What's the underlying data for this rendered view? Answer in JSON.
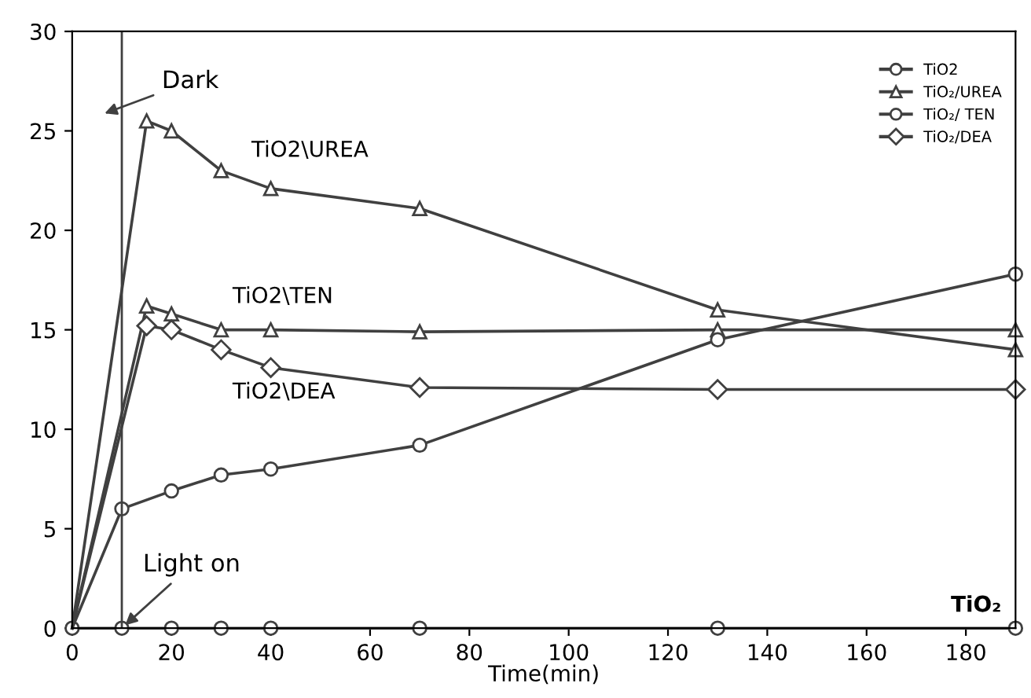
{
  "chart_data": {
    "type": "line",
    "xlabel": "Time(min)",
    "xlim": [
      0,
      190
    ],
    "ylim": [
      0,
      30
    ],
    "xticks": [
      0,
      20,
      40,
      60,
      80,
      100,
      120,
      140,
      160,
      180
    ],
    "yticks": [
      0,
      5,
      10,
      15,
      20,
      25,
      30
    ],
    "grid": false,
    "legend": "top right",
    "series": [
      {
        "name": "TiO2",
        "color": "#404040",
        "marker": "circle",
        "x": [
          0,
          10,
          20,
          30,
          40,
          70,
          130,
          190
        ],
        "values": [
          0,
          0,
          0,
          0,
          0,
          0,
          0,
          0
        ]
      },
      {
        "color": "#404040",
        "marker": "triangle",
        "x": [
          0,
          15,
          20,
          30,
          40,
          70,
          130,
          190
        ],
        "values": [
          0,
          25.5,
          25,
          23,
          22.1,
          21.1,
          16,
          14
        ]
      },
      {
        "name": "TiO₂/UREA",
        "color": "#404040",
        "marker": "triangle",
        "x": [
          0,
          15,
          20,
          30,
          40,
          70,
          130,
          190
        ],
        "values": [
          0,
          16.2,
          15.8,
          15,
          15,
          14.9,
          15,
          15
        ]
      },
      {
        "name": "TiO₂/ TEN",
        "color": "#404040",
        "marker": "circle",
        "x": [
          0,
          10,
          20,
          30,
          40,
          70,
          130,
          190
        ],
        "values": [
          0,
          6,
          6.9,
          7.7,
          8,
          9.2,
          14.5,
          17.8
        ]
      },
      {
        "name": "TiO₂/DEA",
        "color": "#404040",
        "marker": "diamond",
        "x": [
          0,
          15,
          20,
          30,
          40,
          70,
          130,
          190
        ],
        "values": [
          0,
          15.2,
          15,
          14,
          13.1,
          12.1,
          12,
          12
        ]
      }
    ],
    "ref_lines": [
      {
        "axis": "x",
        "value": 10,
        "color": "#404040",
        "line_style": "solid"
      }
    ],
    "annotations": [
      "Dark",
      {
        "text": "Light on",
        "x": 10,
        "y": 0
      },
      "TiO2\\UREA",
      "TiO2\\TEN",
      "TiO2\\DEA",
      "TiO₂"
    ]
  }
}
